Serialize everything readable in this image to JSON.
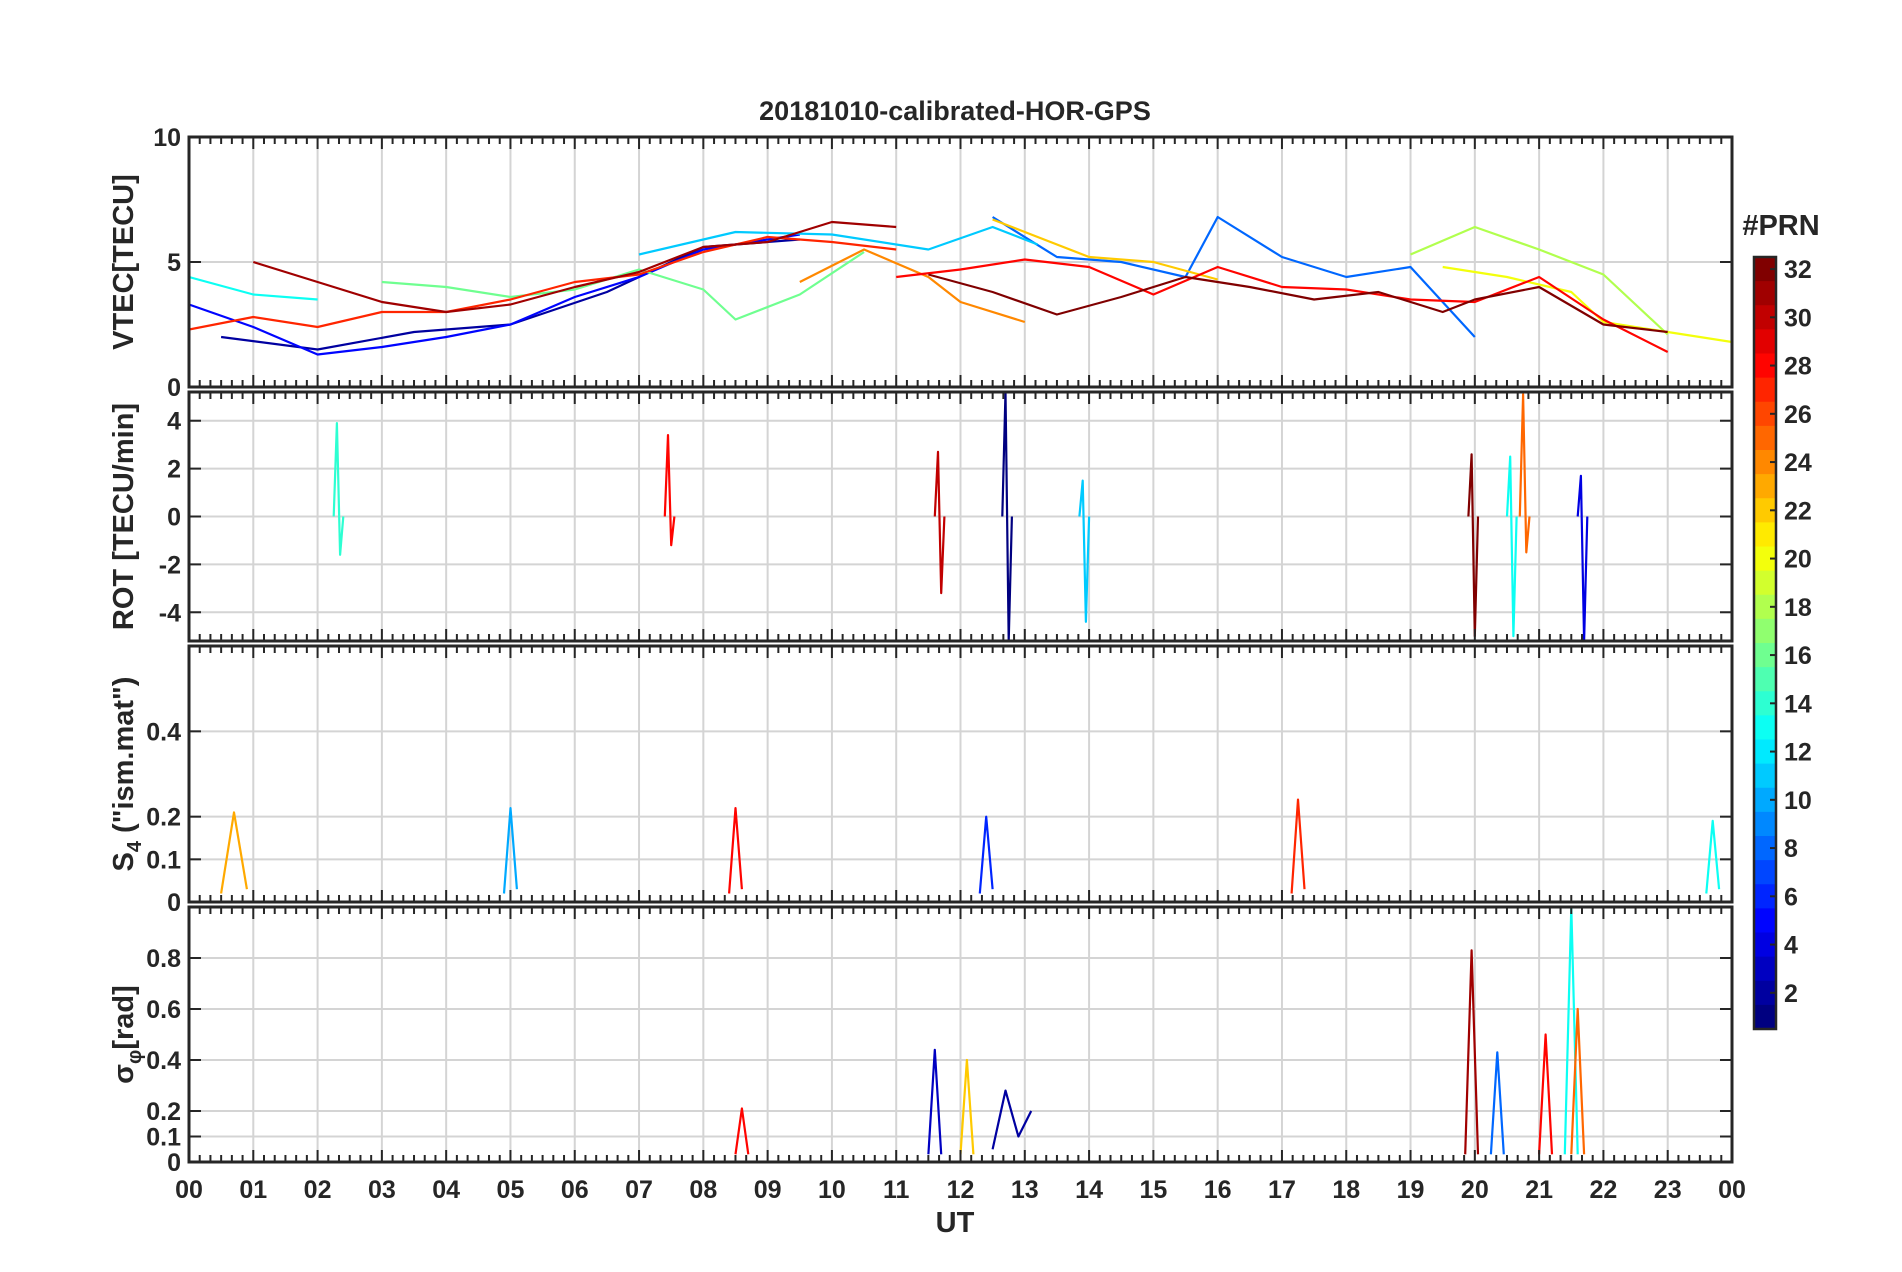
{
  "chart_data": {
    "type": "line",
    "title": "20181010-calibrated-HOR-GPS",
    "xlabel": "UT",
    "x_range": [
      0,
      24
    ],
    "x_tick_labels": [
      "00",
      "01",
      "02",
      "03",
      "04",
      "05",
      "06",
      "07",
      "08",
      "09",
      "10",
      "11",
      "12",
      "13",
      "14",
      "15",
      "16",
      "17",
      "18",
      "19",
      "20",
      "21",
      "22",
      "23",
      "00"
    ],
    "grid": true,
    "panels": [
      {
        "id": "vtec",
        "ylabel": "VTEC[TECU]",
        "ylim": [
          0,
          10
        ],
        "yticks": [
          0,
          5,
          10
        ],
        "ytick_labels": [
          "0",
          "5",
          "10"
        ],
        "series": [
          {
            "name": "PRN 2",
            "prn": 2,
            "x": [
              0.5,
              2,
              3.5,
              5,
              6.5,
              8,
              9.5
            ],
            "y": [
              2.0,
              1.5,
              2.2,
              2.5,
              3.8,
              5.6,
              5.9
            ]
          },
          {
            "name": "PRN 5",
            "prn": 5,
            "x": [
              0,
              1,
              2,
              3,
              4,
              5,
              6,
              7,
              8,
              9.5
            ],
            "y": [
              3.3,
              2.4,
              1.3,
              1.6,
              2.0,
              2.5,
              3.6,
              4.4,
              5.5,
              6.1
            ]
          },
          {
            "name": "PRN 8",
            "prn": 8,
            "x": [
              12.5,
              13.5,
              14.5,
              15.5,
              16,
              17,
              18,
              19,
              20
            ],
            "y": [
              6.8,
              5.2,
              5.0,
              4.4,
              6.8,
              5.2,
              4.4,
              4.8,
              2.0
            ]
          },
          {
            "name": "PRN 11",
            "prn": 11,
            "x": [
              7,
              8.5,
              10,
              11.5,
              12.5,
              13.2
            ],
            "y": [
              5.3,
              6.2,
              6.1,
              5.5,
              6.4,
              5.7
            ]
          },
          {
            "name": "PRN 13",
            "prn": 13,
            "x": [
              0,
              1,
              2
            ],
            "y": [
              4.4,
              3.7,
              3.5
            ]
          },
          {
            "name": "PRN 16",
            "prn": 16,
            "x": [
              3,
              4,
              5,
              6,
              7,
              8,
              8.5,
              9.5,
              10.5
            ],
            "y": [
              4.2,
              4.0,
              3.6,
              3.9,
              4.7,
              3.9,
              2.7,
              3.7,
              5.4
            ]
          },
          {
            "name": "PRN 18",
            "prn": 18,
            "x": [
              19,
              20,
              21,
              22,
              23
            ],
            "y": [
              5.3,
              6.4,
              5.5,
              4.5,
              2.1
            ]
          },
          {
            "name": "PRN 20",
            "prn": 20,
            "x": [
              19.5,
              20.5,
              21.5,
              22,
              23,
              24
            ],
            "y": [
              4.8,
              4.4,
              3.8,
              2.6,
              2.2,
              1.8
            ]
          },
          {
            "name": "PRN 22",
            "prn": 22,
            "x": [
              12.5,
              13,
              14,
              15,
              16
            ],
            "y": [
              6.7,
              6.2,
              5.2,
              5.0,
              4.3
            ]
          },
          {
            "name": "PRN 24",
            "prn": 24,
            "x": [
              9.5,
              10.5,
              11.5,
              12,
              13
            ],
            "y": [
              4.2,
              5.5,
              4.4,
              3.4,
              2.6
            ]
          },
          {
            "name": "PRN 27",
            "prn": 27,
            "x": [
              0,
              1,
              2,
              3,
              4,
              5,
              6,
              7,
              8,
              9,
              10,
              11
            ],
            "y": [
              2.3,
              2.8,
              2.4,
              3.0,
              3.0,
              3.5,
              4.2,
              4.5,
              5.4,
              6.0,
              5.8,
              5.5
            ]
          },
          {
            "name": "PRN 28",
            "prn": 28,
            "x": [
              11,
              12,
              13,
              14,
              15,
              16,
              17,
              18,
              19,
              20,
              21,
              22,
              23
            ],
            "y": [
              4.4,
              4.7,
              5.1,
              4.8,
              3.7,
              4.8,
              4.0,
              3.9,
              3.5,
              3.4,
              4.4,
              2.7,
              1.4
            ]
          },
          {
            "name": "PRN 31",
            "prn": 31,
            "x": [
              1,
              2,
              3,
              4,
              5,
              6,
              7,
              8,
              9,
              10,
              11
            ],
            "y": [
              5.0,
              4.2,
              3.4,
              3.0,
              3.3,
              4.0,
              4.6,
              5.6,
              5.8,
              6.6,
              6.4
            ]
          },
          {
            "name": "PRN 32",
            "prn": 32,
            "x": [
              11.5,
              12.5,
              13.5,
              14.5,
              15.5,
              16.5,
              17.5,
              18.5,
              19.5,
              20,
              21,
              22,
              23
            ],
            "y": [
              4.5,
              3.8,
              2.9,
              3.6,
              4.4,
              4.0,
              3.5,
              3.8,
              3.0,
              3.5,
              4.0,
              2.5,
              2.2
            ]
          }
        ]
      },
      {
        "id": "rot",
        "ylabel": "ROT [TECU/min]",
        "ylim": [
          -5.2,
          5.2
        ],
        "yticks": [
          -4,
          -2,
          0,
          2,
          4
        ],
        "ytick_labels": [
          "-4",
          "-2",
          "0",
          "2",
          "4"
        ],
        "series": [
          {
            "name": "PRN 1",
            "prn": 1,
            "x": [
              12.65,
              12.7,
              12.75,
              12.8
            ],
            "y": [
              0,
              5.2,
              -5.2,
              0
            ]
          },
          {
            "name": "PRN 4",
            "prn": 4,
            "x": [
              21.6,
              21.65,
              21.7,
              21.75
            ],
            "y": [
              0,
              1.7,
              -5.2,
              0
            ]
          },
          {
            "name": "PRN 11",
            "prn": 11,
            "x": [
              13.85,
              13.9,
              13.95,
              14.0
            ],
            "y": [
              0,
              1.5,
              -4.4,
              0
            ]
          },
          {
            "name": "PRN 14",
            "prn": 14,
            "x": [
              2.25,
              2.3,
              2.35,
              2.4
            ],
            "y": [
              0,
              3.9,
              -1.6,
              0
            ]
          },
          {
            "name": "PRN 13",
            "prn": 13,
            "x": [
              20.5,
              20.55,
              20.6,
              20.65
            ],
            "y": [
              0,
              2.5,
              -5.0,
              0
            ]
          },
          {
            "name": "PRN 25",
            "prn": 25,
            "x": [
              20.7,
              20.75,
              20.8,
              20.85
            ],
            "y": [
              0,
              5.1,
              -1.5,
              0
            ]
          },
          {
            "name": "PRN 28",
            "prn": 28,
            "x": [
              7.4,
              7.45,
              7.5,
              7.55
            ],
            "y": [
              0,
              3.4,
              -1.2,
              0
            ]
          },
          {
            "name": "PRN 32",
            "prn": 32,
            "x": [
              19.9,
              19.95,
              20.0,
              20.05
            ],
            "y": [
              0,
              2.6,
              -5.0,
              0
            ]
          },
          {
            "name": "PRN 30",
            "prn": 30,
            "x": [
              11.6,
              11.65,
              11.7,
              11.75
            ],
            "y": [
              0,
              2.7,
              -3.2,
              0
            ]
          }
        ]
      },
      {
        "id": "s4",
        "ylabel": "S4 (\"ism.mat\")",
        "ylabel_main": "S",
        "ylabel_sub": "4",
        "ylabel_rest": " (\"ism.mat\")",
        "ylim": [
          0,
          0.6
        ],
        "yticks": [
          0,
          0.1,
          0.2,
          0.4
        ],
        "ytick_labels": [
          "0",
          "0.1",
          "0.2",
          "0.4"
        ],
        "series": [
          {
            "name": "PRN 23",
            "prn": 23,
            "x": [
              0.5,
              0.7,
              0.9
            ],
            "y": [
              0.02,
              0.21,
              0.03
            ]
          },
          {
            "name": "PRN 10",
            "prn": 10,
            "x": [
              4.9,
              5.0,
              5.1
            ],
            "y": [
              0.02,
              0.22,
              0.03
            ]
          },
          {
            "name": "PRN 28",
            "prn": 28,
            "x": [
              8.4,
              8.5,
              8.6
            ],
            "y": [
              0.02,
              0.22,
              0.03
            ]
          },
          {
            "name": "PRN 27",
            "prn": 27,
            "x": [
              17.15,
              17.25,
              17.35
            ],
            "y": [
              0.02,
              0.24,
              0.03
            ]
          },
          {
            "name": "PRN 6",
            "prn": 6,
            "x": [
              12.3,
              12.4,
              12.5
            ],
            "y": [
              0.02,
              0.2,
              0.03
            ]
          },
          {
            "name": "PRN 13",
            "prn": 13,
            "x": [
              23.6,
              23.7,
              23.8
            ],
            "y": [
              0.02,
              0.19,
              0.03
            ]
          }
        ]
      },
      {
        "id": "sigma_phi",
        "ylabel": "σφ[rad]",
        "ylabel_main": "σ",
        "ylabel_sub": "φ",
        "ylabel_rest": "[rad]",
        "ylim": [
          0,
          1.0
        ],
        "yticks": [
          0,
          0.1,
          0.2,
          0.4,
          0.6,
          0.8
        ],
        "ytick_labels": [
          "0",
          "0.1",
          "0.2",
          "0.4",
          "0.6",
          "0.8"
        ],
        "series": [
          {
            "name": "PRN 31",
            "prn": 31,
            "x": [
              19.85,
              19.95,
              20.05
            ],
            "y": [
              0.03,
              0.83,
              0.03
            ]
          },
          {
            "name": "PRN 13",
            "prn": 13,
            "x": [
              21.4,
              21.5,
              21.6
            ],
            "y": [
              0.03,
              1.0,
              0.03
            ]
          },
          {
            "name": "PRN 25",
            "prn": 25,
            "x": [
              21.5,
              21.6,
              21.7
            ],
            "y": [
              0.03,
              0.6,
              0.03
            ]
          },
          {
            "name": "PRN 28",
            "prn": 28,
            "x": [
              21.0,
              21.1,
              21.2
            ],
            "y": [
              0.03,
              0.5,
              0.03
            ]
          },
          {
            "name": "PRN 8",
            "prn": 8,
            "x": [
              20.25,
              20.35,
              20.45
            ],
            "y": [
              0.03,
              0.43,
              0.03
            ]
          },
          {
            "name": "PRN 3",
            "prn": 3,
            "x": [
              11.5,
              11.6,
              11.7
            ],
            "y": [
              0.03,
              0.44,
              0.03
            ]
          },
          {
            "name": "PRN 22",
            "prn": 22,
            "x": [
              12.0,
              12.1,
              12.2
            ],
            "y": [
              0.03,
              0.4,
              0.03
            ]
          },
          {
            "name": "PRN 2",
            "prn": 2,
            "x": [
              12.5,
              12.7,
              12.9,
              13.1
            ],
            "y": [
              0.05,
              0.28,
              0.1,
              0.2
            ]
          },
          {
            "name": "PRN 28",
            "prn": 28,
            "x": [
              8.5,
              8.6,
              8.7
            ],
            "y": [
              0.03,
              0.21,
              0.03
            ]
          }
        ]
      }
    ],
    "colorbar": {
      "label": "#PRN",
      "range": [
        1,
        32
      ],
      "ticks": [
        2,
        4,
        6,
        8,
        10,
        12,
        14,
        16,
        18,
        20,
        22,
        24,
        26,
        28,
        30,
        32
      ],
      "tick_labels": [
        "2",
        "4",
        "6",
        "8",
        "10",
        "12",
        "14",
        "16",
        "18",
        "20",
        "22",
        "24",
        "26",
        "28",
        "30",
        "32"
      ],
      "colormap": "jet"
    }
  }
}
